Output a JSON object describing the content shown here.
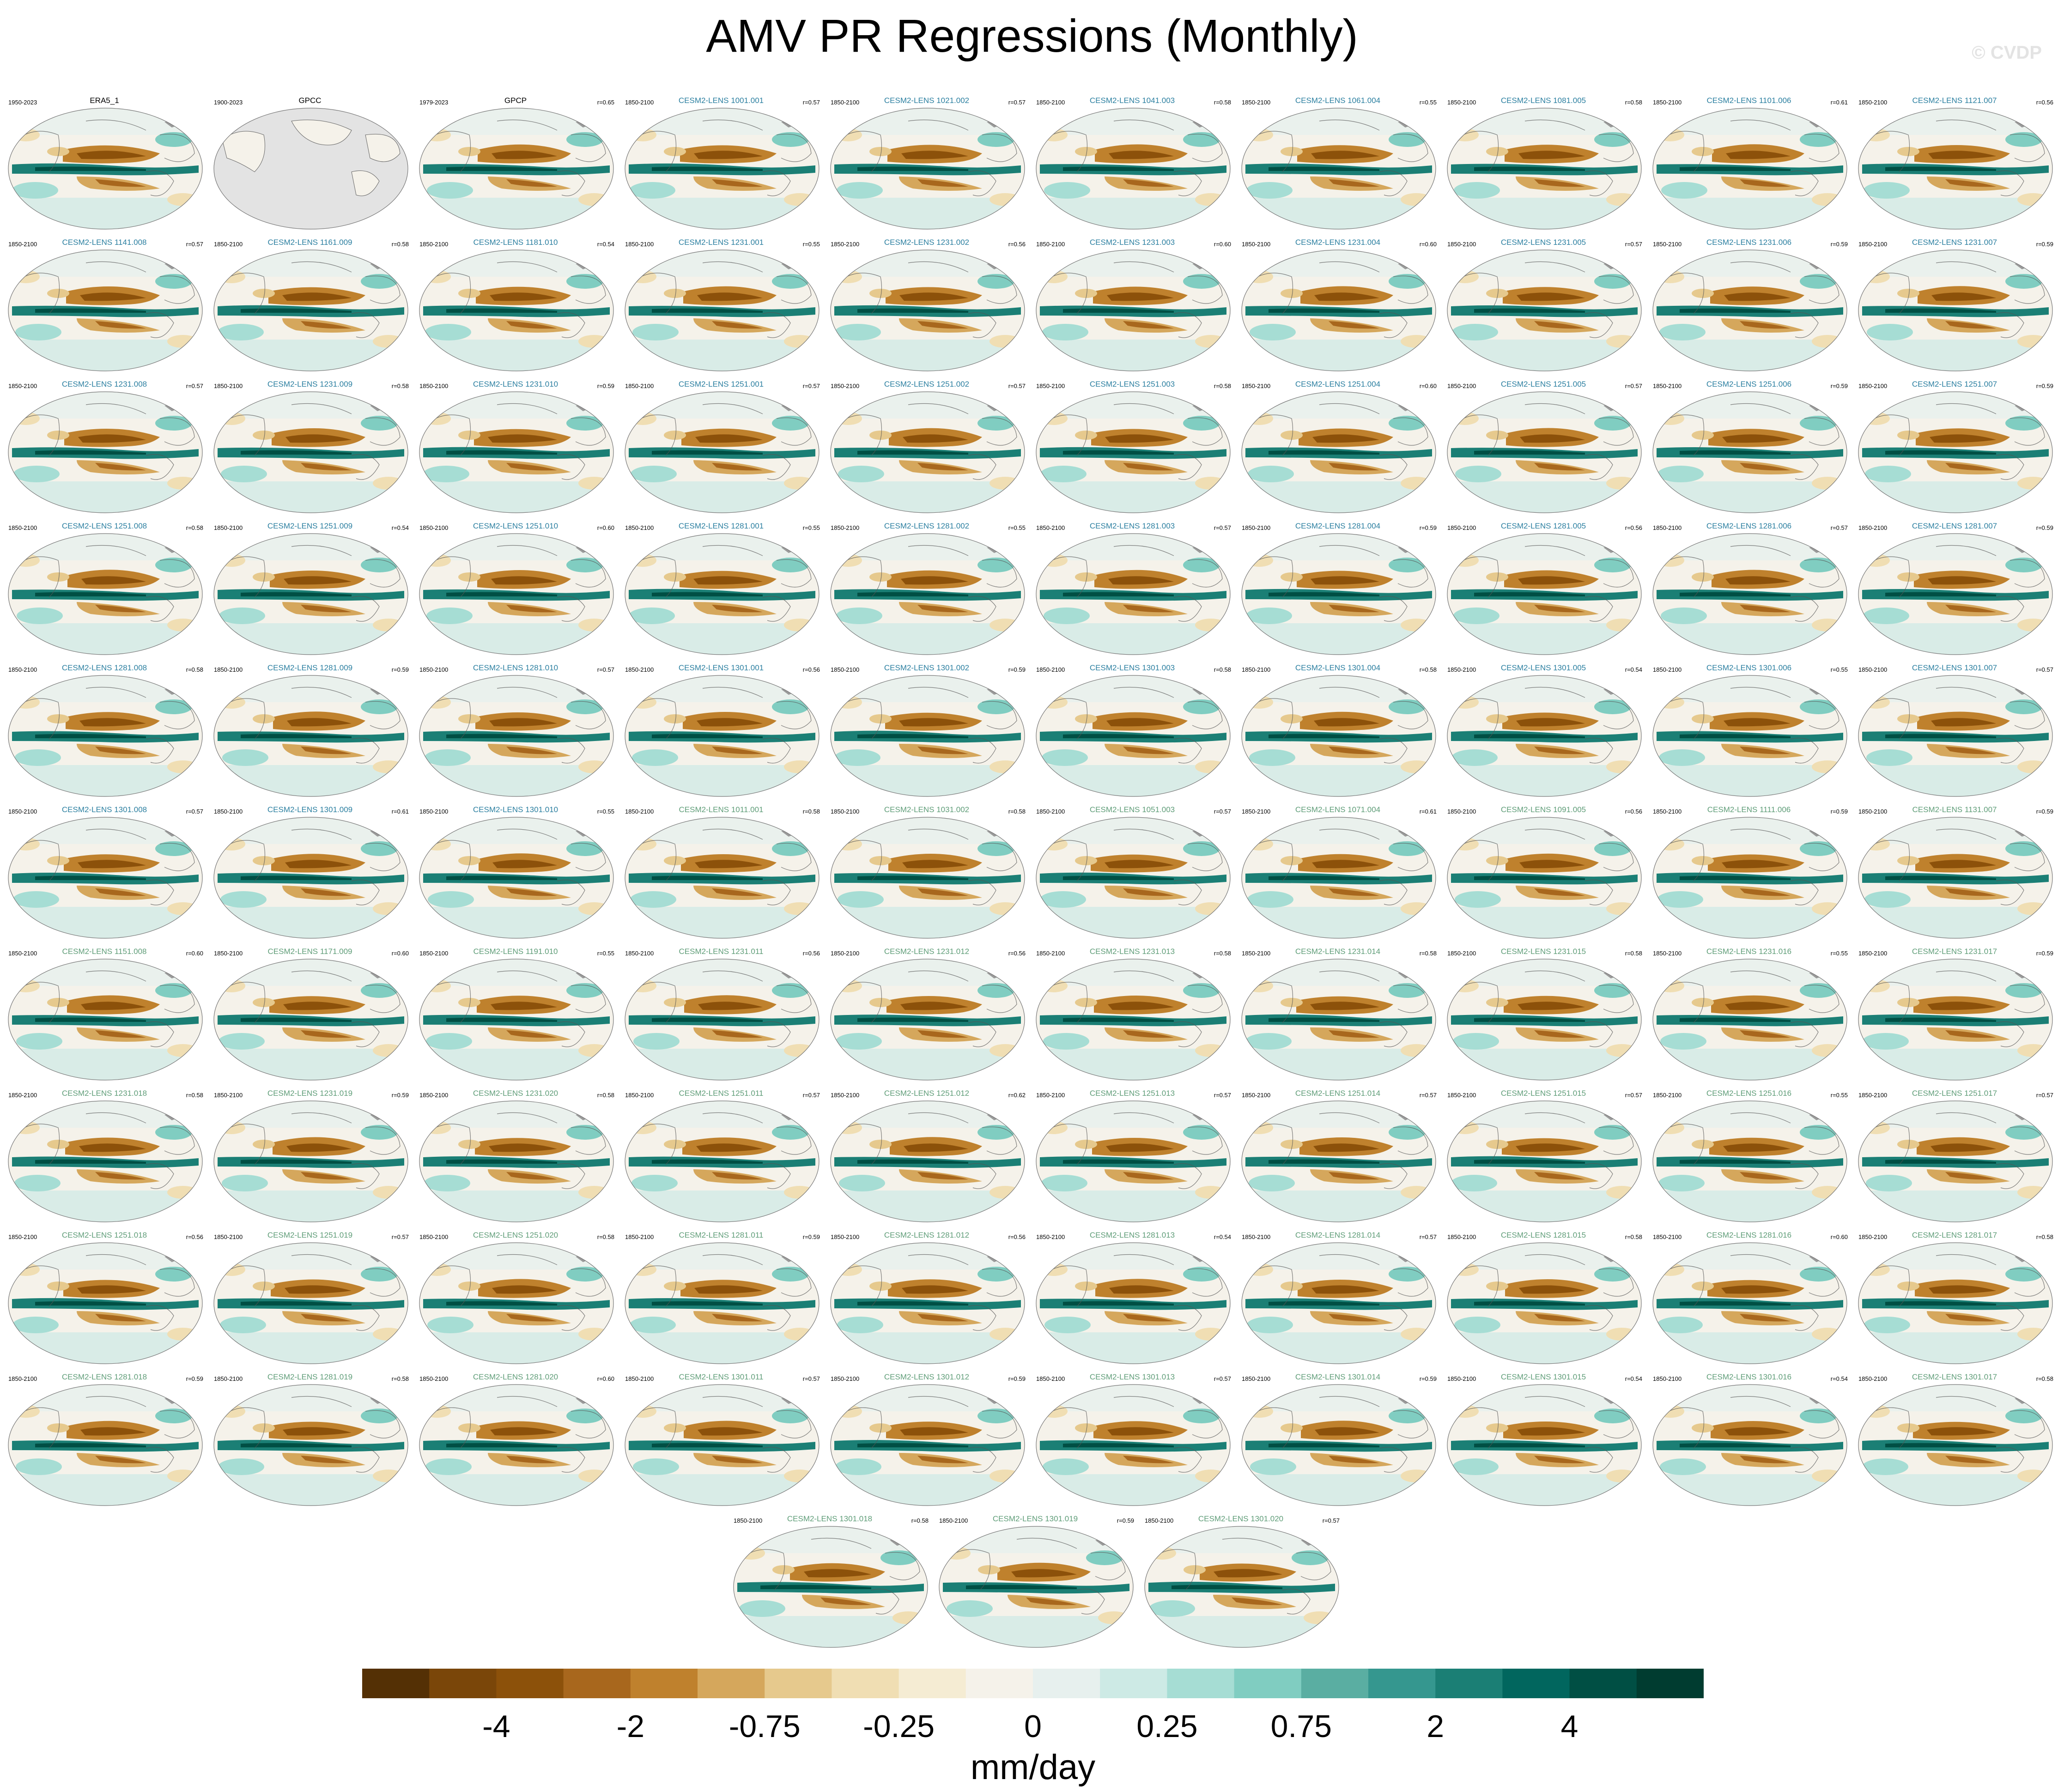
{
  "title": "AMV PR Regressions (Monthly)",
  "watermark": "© CVDP",
  "palette": [
    "#543005",
    "#7a4609",
    "#8c510a",
    "#a8671d",
    "#bf812d",
    "#d5a75c",
    "#e6c98d",
    "#f0deb3",
    "#f5ecd3",
    "#f5f2ea",
    "#e7f0ee",
    "#cdeae5",
    "#a6ddd4",
    "#80cdc1",
    "#5aaea2",
    "#35978f",
    "#1b7f75",
    "#01665e",
    "#004f44",
    "#003c30"
  ],
  "obs_color": "#000000",
  "obs_names": [
    "ERA5_1",
    "GPCC",
    "GPCP"
  ],
  "ens_color": "#2b7fa0",
  "ens_color_alt": "#5f9d78",
  "ocean_missing_color": "#e3e3e3",
  "panels": [
    {
      "name": "ERA5_1",
      "years": "1950-2023",
      "r": ""
    },
    {
      "name": "GPCC",
      "years": "1900-2023",
      "r": ""
    },
    {
      "name": "GPCP",
      "years": "1979-2023",
      "r": "r=0.65"
    },
    {
      "name": "CESM2-LENS 1001.001",
      "years": "1850-2100",
      "r": "r=0.57"
    },
    {
      "name": "CESM2-LENS 1021.002",
      "years": "1850-2100",
      "r": "r=0.57"
    },
    {
      "name": "CESM2-LENS 1041.003",
      "years": "1850-2100",
      "r": "r=0.58"
    },
    {
      "name": "CESM2-LENS 1061.004",
      "years": "1850-2100",
      "r": "r=0.55"
    },
    {
      "name": "CESM2-LENS 1081.005",
      "years": "1850-2100",
      "r": "r=0.58"
    },
    {
      "name": "CESM2-LENS 1101.006",
      "years": "1850-2100",
      "r": "r=0.61"
    },
    {
      "name": "CESM2-LENS 1121.007",
      "years": "1850-2100",
      "r": "r=0.56"
    },
    {
      "name": "CESM2-LENS 1141.008",
      "years": "1850-2100",
      "r": "r=0.57"
    },
    {
      "name": "CESM2-LENS 1161.009",
      "years": "1850-2100",
      "r": "r=0.58"
    },
    {
      "name": "CESM2-LENS 1181.010",
      "years": "1850-2100",
      "r": "r=0.54"
    },
    {
      "name": "CESM2-LENS 1231.001",
      "years": "1850-2100",
      "r": "r=0.55"
    },
    {
      "name": "CESM2-LENS 1231.002",
      "years": "1850-2100",
      "r": "r=0.56"
    },
    {
      "name": "CESM2-LENS 1231.003",
      "years": "1850-2100",
      "r": "r=0.60"
    },
    {
      "name": "CESM2-LENS 1231.004",
      "years": "1850-2100",
      "r": "r=0.60"
    },
    {
      "name": "CESM2-LENS 1231.005",
      "years": "1850-2100",
      "r": "r=0.57"
    },
    {
      "name": "CESM2-LENS 1231.006",
      "years": "1850-2100",
      "r": "r=0.59"
    },
    {
      "name": "CESM2-LENS 1231.007",
      "years": "1850-2100",
      "r": "r=0.59"
    },
    {
      "name": "CESM2-LENS 1231.008",
      "years": "1850-2100",
      "r": "r=0.57"
    },
    {
      "name": "CESM2-LENS 1231.009",
      "years": "1850-2100",
      "r": "r=0.58"
    },
    {
      "name": "CESM2-LENS 1231.010",
      "years": "1850-2100",
      "r": "r=0.59"
    },
    {
      "name": "CESM2-LENS 1251.001",
      "years": "1850-2100",
      "r": "r=0.57"
    },
    {
      "name": "CESM2-LENS 1251.002",
      "years": "1850-2100",
      "r": "r=0.57"
    },
    {
      "name": "CESM2-LENS 1251.003",
      "years": "1850-2100",
      "r": "r=0.58"
    },
    {
      "name": "CESM2-LENS 1251.004",
      "years": "1850-2100",
      "r": "r=0.60"
    },
    {
      "name": "CESM2-LENS 1251.005",
      "years": "1850-2100",
      "r": "r=0.57"
    },
    {
      "name": "CESM2-LENS 1251.006",
      "years": "1850-2100",
      "r": "r=0.59"
    },
    {
      "name": "CESM2-LENS 1251.007",
      "years": "1850-2100",
      "r": "r=0.59"
    },
    {
      "name": "CESM2-LENS 1251.008",
      "years": "1850-2100",
      "r": "r=0.58"
    },
    {
      "name": "CESM2-LENS 1251.009",
      "years": "1850-2100",
      "r": "r=0.54"
    },
    {
      "name": "CESM2-LENS 1251.010",
      "years": "1850-2100",
      "r": "r=0.60"
    },
    {
      "name": "CESM2-LENS 1281.001",
      "years": "1850-2100",
      "r": "r=0.55"
    },
    {
      "name": "CESM2-LENS 1281.002",
      "years": "1850-2100",
      "r": "r=0.55"
    },
    {
      "name": "CESM2-LENS 1281.003",
      "years": "1850-2100",
      "r": "r=0.57"
    },
    {
      "name": "CESM2-LENS 1281.004",
      "years": "1850-2100",
      "r": "r=0.59"
    },
    {
      "name": "CESM2-LENS 1281.005",
      "years": "1850-2100",
      "r": "r=0.56"
    },
    {
      "name": "CESM2-LENS 1281.006",
      "years": "1850-2100",
      "r": "r=0.57"
    },
    {
      "name": "CESM2-LENS 1281.007",
      "years": "1850-2100",
      "r": "r=0.59"
    },
    {
      "name": "CESM2-LENS 1281.008",
      "years": "1850-2100",
      "r": "r=0.58"
    },
    {
      "name": "CESM2-LENS 1281.009",
      "years": "1850-2100",
      "r": "r=0.59"
    },
    {
      "name": "CESM2-LENS 1281.010",
      "years": "1850-2100",
      "r": "r=0.57"
    },
    {
      "name": "CESM2-LENS 1301.001",
      "years": "1850-2100",
      "r": "r=0.56"
    },
    {
      "name": "CESM2-LENS 1301.002",
      "years": "1850-2100",
      "r": "r=0.59"
    },
    {
      "name": "CESM2-LENS 1301.003",
      "years": "1850-2100",
      "r": "r=0.58"
    },
    {
      "name": "CESM2-LENS 1301.004",
      "years": "1850-2100",
      "r": "r=0.58"
    },
    {
      "name": "CESM2-LENS 1301.005",
      "years": "1850-2100",
      "r": "r=0.54"
    },
    {
      "name": "CESM2-LENS 1301.006",
      "years": "1850-2100",
      "r": "r=0.55"
    },
    {
      "name": "CESM2-LENS 1301.007",
      "years": "1850-2100",
      "r": "r=0.57"
    },
    {
      "name": "CESM2-LENS 1301.008",
      "years": "1850-2100",
      "r": "r=0.57"
    },
    {
      "name": "CESM2-LENS 1301.009",
      "years": "1850-2100",
      "r": "r=0.61"
    },
    {
      "name": "CESM2-LENS 1301.010",
      "years": "1850-2100",
      "r": "r=0.55"
    },
    {
      "name": "CESM2-LENS 1011.001",
      "years": "1850-2100",
      "r": "r=0.58"
    },
    {
      "name": "CESM2-LENS 1031.002",
      "years": "1850-2100",
      "r": "r=0.58"
    },
    {
      "name": "CESM2-LENS 1051.003",
      "years": "1850-2100",
      "r": "r=0.57"
    },
    {
      "name": "CESM2-LENS 1071.004",
      "years": "1850-2100",
      "r": "r=0.61"
    },
    {
      "name": "CESM2-LENS 1091.005",
      "years": "1850-2100",
      "r": "r=0.56"
    },
    {
      "name": "CESM2-LENS 1111.006",
      "years": "1850-2100",
      "r": "r=0.59"
    },
    {
      "name": "CESM2-LENS 1131.007",
      "years": "1850-2100",
      "r": "r=0.59"
    },
    {
      "name": "CESM2-LENS 1151.008",
      "years": "1850-2100",
      "r": "r=0.60"
    },
    {
      "name": "CESM2-LENS 1171.009",
      "years": "1850-2100",
      "r": "r=0.60"
    },
    {
      "name": "CESM2-LENS 1191.010",
      "years": "1850-2100",
      "r": "r=0.55"
    },
    {
      "name": "CESM2-LENS 1231.011",
      "years": "1850-2100",
      "r": "r=0.56"
    },
    {
      "name": "CESM2-LENS 1231.012",
      "years": "1850-2100",
      "r": "r=0.56"
    },
    {
      "name": "CESM2-LENS 1231.013",
      "years": "1850-2100",
      "r": "r=0.58"
    },
    {
      "name": "CESM2-LENS 1231.014",
      "years": "1850-2100",
      "r": "r=0.58"
    },
    {
      "name": "CESM2-LENS 1231.015",
      "years": "1850-2100",
      "r": "r=0.58"
    },
    {
      "name": "CESM2-LENS 1231.016",
      "years": "1850-2100",
      "r": "r=0.55"
    },
    {
      "name": "CESM2-LENS 1231.017",
      "years": "1850-2100",
      "r": "r=0.59"
    },
    {
      "name": "CESM2-LENS 1231.018",
      "years": "1850-2100",
      "r": "r=0.58"
    },
    {
      "name": "CESM2-LENS 1231.019",
      "years": "1850-2100",
      "r": "r=0.59"
    },
    {
      "name": "CESM2-LENS 1231.020",
      "years": "1850-2100",
      "r": "r=0.58"
    },
    {
      "name": "CESM2-LENS 1251.011",
      "years": "1850-2100",
      "r": "r=0.57"
    },
    {
      "name": "CESM2-LENS 1251.012",
      "years": "1850-2100",
      "r": "r=0.62"
    },
    {
      "name": "CESM2-LENS 1251.013",
      "years": "1850-2100",
      "r": "r=0.57"
    },
    {
      "name": "CESM2-LENS 1251.014",
      "years": "1850-2100",
      "r": "r=0.57"
    },
    {
      "name": "CESM2-LENS 1251.015",
      "years": "1850-2100",
      "r": "r=0.57"
    },
    {
      "name": "CESM2-LENS 1251.016",
      "years": "1850-2100",
      "r": "r=0.55"
    },
    {
      "name": "CESM2-LENS 1251.017",
      "years": "1850-2100",
      "r": "r=0.57"
    },
    {
      "name": "CESM2-LENS 1251.018",
      "years": "1850-2100",
      "r": "r=0.56"
    },
    {
      "name": "CESM2-LENS 1251.019",
      "years": "1850-2100",
      "r": "r=0.57"
    },
    {
      "name": "CESM2-LENS 1251.020",
      "years": "1850-2100",
      "r": "r=0.58"
    },
    {
      "name": "CESM2-LENS 1281.011",
      "years": "1850-2100",
      "r": "r=0.59"
    },
    {
      "name": "CESM2-LENS 1281.012",
      "years": "1850-2100",
      "r": "r=0.56"
    },
    {
      "name": "CESM2-LENS 1281.013",
      "years": "1850-2100",
      "r": "r=0.54"
    },
    {
      "name": "CESM2-LENS 1281.014",
      "years": "1850-2100",
      "r": "r=0.57"
    },
    {
      "name": "CESM2-LENS 1281.015",
      "years": "1850-2100",
      "r": "r=0.58"
    },
    {
      "name": "CESM2-LENS 1281.016",
      "years": "1850-2100",
      "r": "r=0.60"
    },
    {
      "name": "CESM2-LENS 1281.017",
      "years": "1850-2100",
      "r": "r=0.58"
    },
    {
      "name": "CESM2-LENS 1281.018",
      "years": "1850-2100",
      "r": "r=0.59"
    },
    {
      "name": "CESM2-LENS 1281.019",
      "years": "1850-2100",
      "r": "r=0.58"
    },
    {
      "name": "CESM2-LENS 1281.020",
      "years": "1850-2100",
      "r": "r=0.60"
    },
    {
      "name": "CESM2-LENS 1301.011",
      "years": "1850-2100",
      "r": "r=0.57"
    },
    {
      "name": "CESM2-LENS 1301.012",
      "years": "1850-2100",
      "r": "r=0.59"
    },
    {
      "name": "CESM2-LENS 1301.013",
      "years": "1850-2100",
      "r": "r=0.57"
    },
    {
      "name": "CESM2-LENS 1301.014",
      "years": "1850-2100",
      "r": "r=0.59"
    },
    {
      "name": "CESM2-LENS 1301.015",
      "years": "1850-2100",
      "r": "r=0.54"
    },
    {
      "name": "CESM2-LENS 1301.016",
      "years": "1850-2100",
      "r": "r=0.54"
    },
    {
      "name": "CESM2-LENS 1301.017",
      "years": "1850-2100",
      "r": "r=0.58"
    },
    {
      "name": "CESM2-LENS 1301.018",
      "years": "1850-2100",
      "r": "r=0.58"
    },
    {
      "name": "CESM2-LENS 1301.019",
      "years": "1850-2100",
      "r": "r=0.59"
    },
    {
      "name": "CESM2-LENS 1301.020",
      "years": "1850-2100",
      "r": "r=0.57"
    }
  ],
  "chart_data": {
    "type": "heatmap",
    "title": "AMV PR Regressions (Monthly)",
    "colorbar": {
      "units": "mm/day",
      "tick_labels": [
        "-4",
        "-2",
        "-0.75",
        "-0.25",
        "0",
        "0.25",
        "0.75",
        "2",
        "4"
      ],
      "n_bins": 20
    },
    "panel_count": 103
  }
}
